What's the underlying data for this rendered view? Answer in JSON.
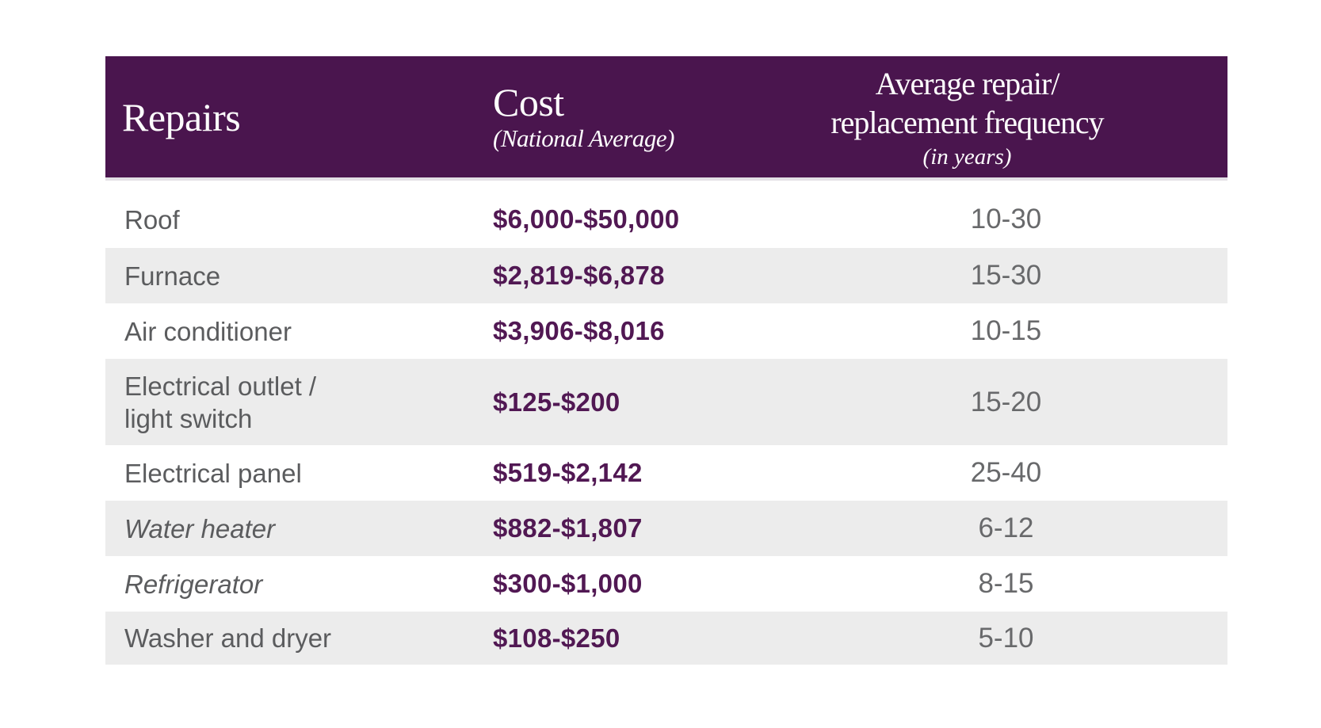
{
  "table": {
    "header": {
      "repairs_label": "Repairs",
      "cost_label": "Cost",
      "cost_sublabel": "(National Average)",
      "frequency_label": "Average repair/\nreplacement frequency",
      "frequency_sublabel": "(in years)"
    },
    "rows": [
      {
        "repair": "Roof",
        "cost": "$6,000-$50,000",
        "frequency": "10-30"
      },
      {
        "repair": "Furnace",
        "cost": "$2,819-$6,878",
        "frequency": "15-30"
      },
      {
        "repair": "Air conditioner",
        "cost": "$3,906-$8,016",
        "frequency": "10-15"
      },
      {
        "repair": "Electrical outlet /\nlight switch",
        "cost": "$125-$200",
        "frequency": "15-20"
      },
      {
        "repair": "Electrical panel",
        "cost": "$519-$2,142",
        "frequency": "25-40"
      },
      {
        "repair": "Water heater",
        "cost": "$882-$1,807",
        "frequency": "6-12"
      },
      {
        "repair": "Refrigerator",
        "cost": "$300-$1,000",
        "frequency": "8-15"
      },
      {
        "repair": "Washer and dryer",
        "cost": "$108-$250",
        "frequency": "5-10"
      }
    ],
    "colors": {
      "header_background": "#4a154e",
      "header_text": "#fdfcfd",
      "stripe_gray": "#ececec",
      "repair_text_gray": "#5b5c5e",
      "cost_text_purple": "#511853",
      "frequency_text_gray": "#68696b"
    }
  },
  "chart_data": {
    "type": "table",
    "columns": [
      "Repairs",
      "Cost (National Average)",
      "Average repair/replacement frequency (in years)"
    ],
    "rows": [
      [
        "Roof",
        "$6,000-$50,000",
        "10-30"
      ],
      [
        "Furnace",
        "$2,819-$6,878",
        "15-30"
      ],
      [
        "Air conditioner",
        "$3,906-$8,016",
        "10-15"
      ],
      [
        "Electrical outlet / light switch",
        "$125-$200",
        "15-20"
      ],
      [
        "Electrical panel",
        "$519-$2,142",
        "25-40"
      ],
      [
        "Water heater",
        "$882-$1,807",
        "6-12"
      ],
      [
        "Refrigerator",
        "$300-$1,000",
        "8-15"
      ],
      [
        "Washer and dryer",
        "$108-$250",
        "5-10"
      ]
    ]
  }
}
